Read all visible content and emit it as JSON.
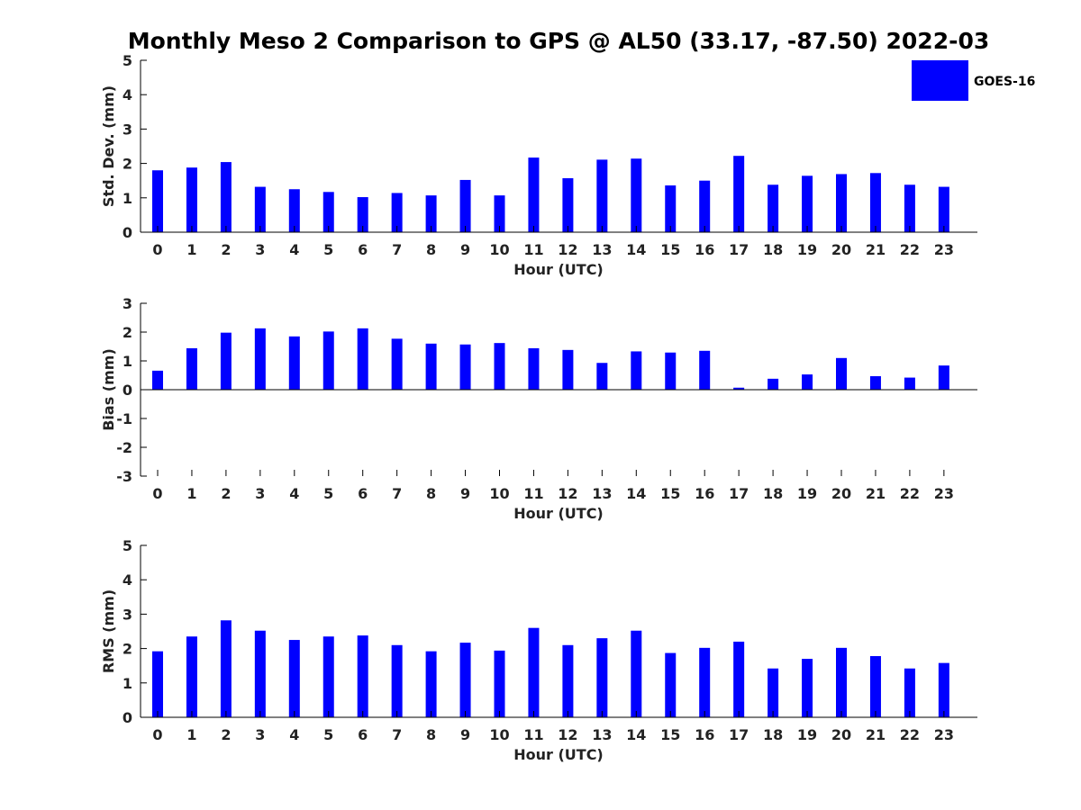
{
  "chart_data": {
    "title": "Monthly Meso 2 Comparison to GPS @ AL50 (33.17, -87.50) 2022-03",
    "bar_color": "#0000ff",
    "legend": {
      "label": "GOES-16",
      "position": "top-right"
    },
    "categories": [
      "0",
      "1",
      "2",
      "3",
      "4",
      "5",
      "6",
      "7",
      "8",
      "9",
      "10",
      "11",
      "12",
      "13",
      "14",
      "15",
      "16",
      "17",
      "18",
      "19",
      "20",
      "21",
      "22",
      "23"
    ],
    "panels": [
      {
        "type": "bar",
        "xlabel": "Hour (UTC)",
        "ylabel": "Std. Dev. (mm)",
        "ylim": [
          0,
          5
        ],
        "yticks": [
          "0",
          "1",
          "2",
          "3",
          "4",
          "5"
        ],
        "series": [
          {
            "name": "GOES-16",
            "values": [
              1.8,
              1.88,
              2.04,
              1.32,
              1.25,
              1.17,
              1.02,
              1.14,
              1.07,
              1.52,
              1.07,
              2.17,
              1.57,
              2.11,
              2.14,
              1.36,
              1.5,
              2.22,
              1.38,
              1.64,
              1.69,
              1.72,
              1.38,
              1.32
            ]
          }
        ]
      },
      {
        "type": "bar",
        "xlabel": "Hour (UTC)",
        "ylabel": "Bias (mm)",
        "ylim": [
          -3,
          3
        ],
        "yticks": [
          "-3",
          "-2",
          "-1",
          "0",
          "1",
          "2",
          "3"
        ],
        "series": [
          {
            "name": "GOES-16",
            "values": [
              0.66,
              1.44,
              1.98,
              2.13,
              1.85,
              2.02,
              2.13,
              1.77,
              1.6,
              1.57,
              1.62,
              1.44,
              1.38,
              0.93,
              1.33,
              1.29,
              1.35,
              0.07,
              0.38,
              0.53,
              1.1,
              0.47,
              0.42,
              0.84
            ]
          }
        ]
      },
      {
        "type": "bar",
        "xlabel": "Hour (UTC)",
        "ylabel": "RMS (mm)",
        "ylim": [
          0,
          5
        ],
        "yticks": [
          "0",
          "1",
          "2",
          "3",
          "4",
          "5"
        ],
        "series": [
          {
            "name": "GOES-16",
            "values": [
              1.92,
              2.35,
              2.82,
              2.52,
              2.25,
              2.35,
              2.38,
              2.1,
              1.92,
              2.17,
              1.94,
              2.6,
              2.1,
              2.3,
              2.52,
              1.87,
              2.02,
              2.2,
              1.42,
              1.7,
              2.02,
              1.78,
              1.42,
              1.58
            ]
          }
        ]
      }
    ]
  }
}
